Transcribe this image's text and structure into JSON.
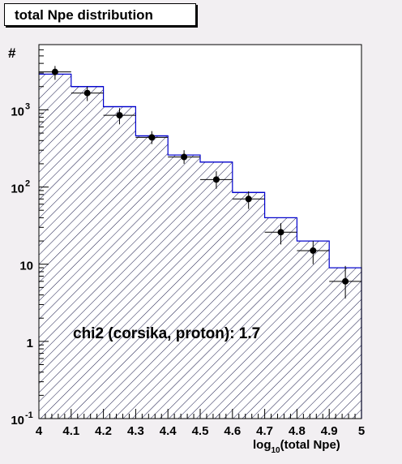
{
  "title": "total Npe distribution",
  "annotation": "chi2 (corsika, proton): 1.7",
  "chart_data": {
    "type": "bar",
    "title": "total Npe distribution",
    "xlabel": "log10(total Npe)",
    "ylabel": "#",
    "log_y": true,
    "xlim": [
      4,
      5
    ],
    "ylim": [
      0.1,
      7000
    ],
    "x_ticks": [
      "4",
      "4.1",
      "4.2",
      "4.3",
      "4.4",
      "4.5",
      "4.6",
      "4.7",
      "4.8",
      "4.9",
      "5"
    ],
    "y_ticks": [
      {
        "base": "10",
        "exp": "-1",
        "value": 0.1
      },
      {
        "base": "1",
        "exp": "",
        "value": 1
      },
      {
        "base": "10",
        "exp": "",
        "value": 10
      },
      {
        "base": "10",
        "exp": "2",
        "value": 100
      },
      {
        "base": "10",
        "exp": "3",
        "value": 1000
      }
    ],
    "bin_edges": [
      4.0,
      4.1,
      4.2,
      4.3,
      4.4,
      4.5,
      4.6,
      4.7,
      4.8,
      4.9,
      5.0
    ],
    "series": [
      {
        "style": "hatched histogram",
        "values": [
          2900,
          2000,
          1100,
          460,
          260,
          210,
          85,
          40,
          20,
          9
        ]
      },
      {
        "style": "points with error bars",
        "x": [
          4.05,
          4.15,
          4.25,
          4.35,
          4.45,
          4.55,
          4.65,
          4.75,
          4.85,
          4.95
        ],
        "values": [
          3100,
          1650,
          850,
          440,
          245,
          125,
          70,
          26,
          15,
          6
        ],
        "err_low": [
          2450,
          1300,
          650,
          360,
          200,
          95,
          52,
          18,
          10,
          3.6
        ],
        "err_high": [
          3700,
          2000,
          1050,
          530,
          300,
          160,
          88,
          34,
          20,
          9.5
        ]
      }
    ],
    "colors": {
      "histogram": "#0000cc",
      "hatch": "#000033",
      "points": "#000000",
      "background": "#f2eff2",
      "frame": "#ffffff"
    }
  }
}
